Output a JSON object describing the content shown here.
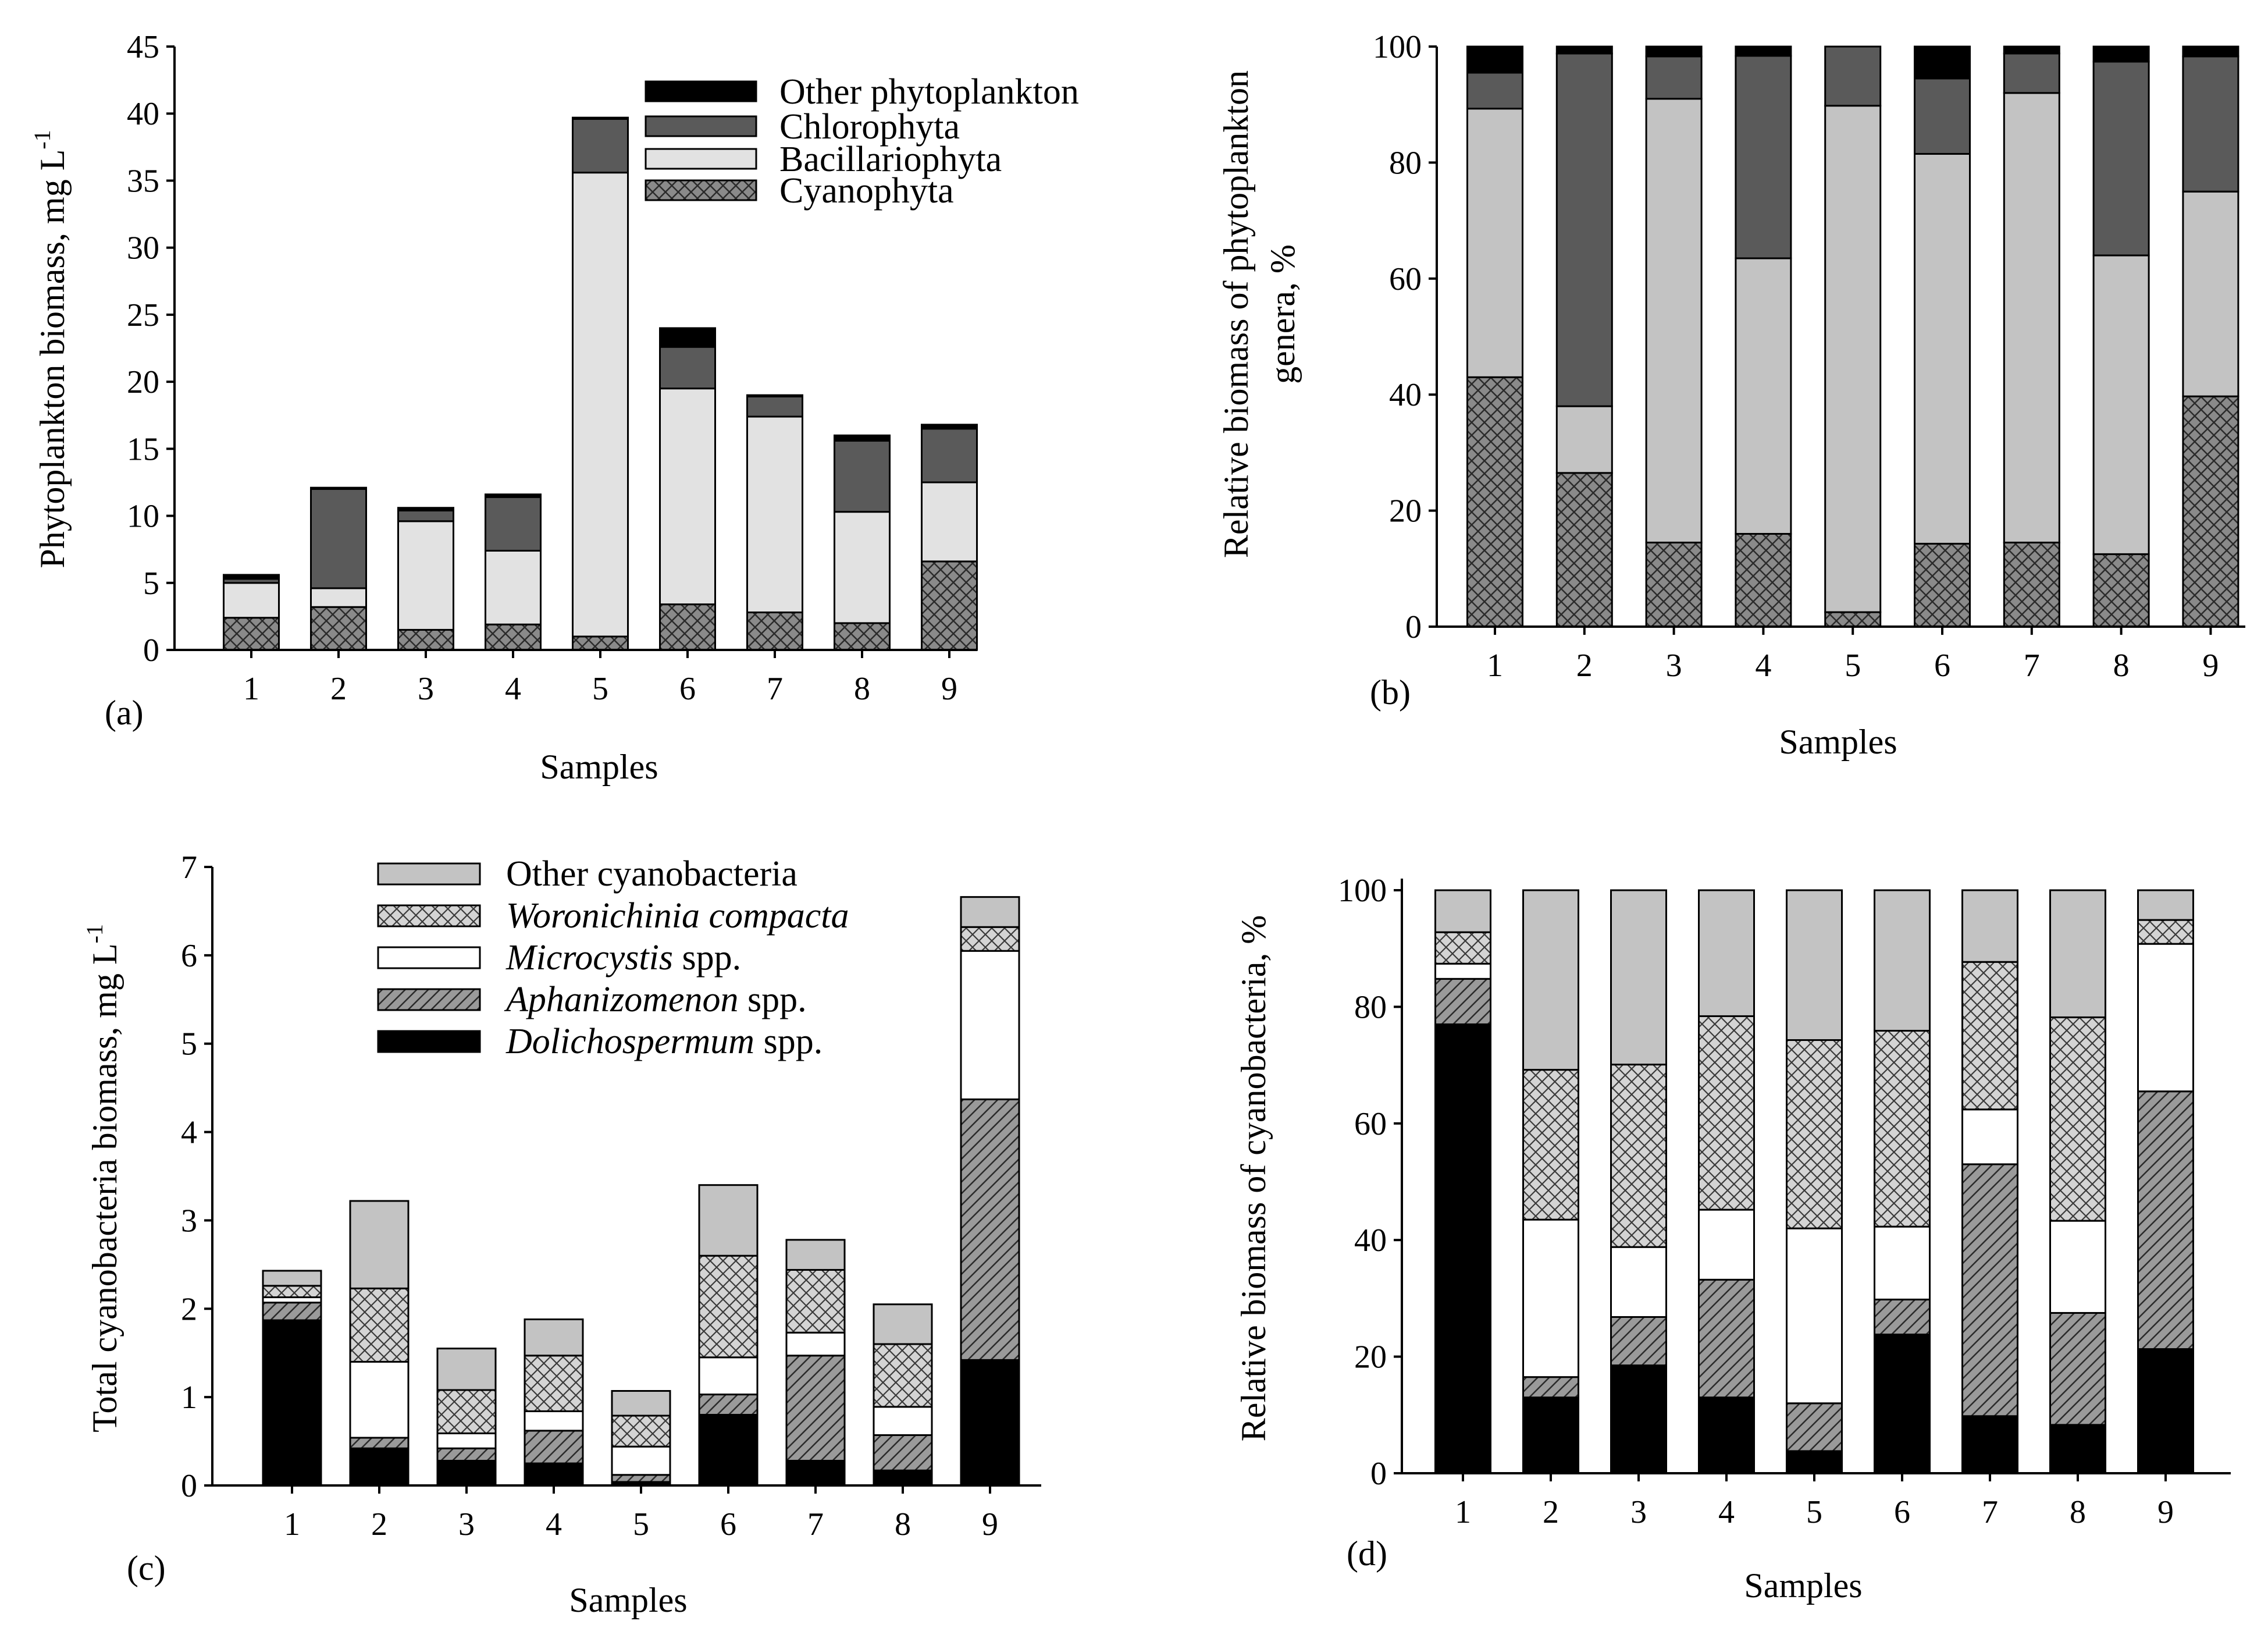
{
  "figure": {
    "caption": ""
  },
  "patterns": {
    "black": "#000000",
    "dark_gray": "#5a5a5a",
    "light_gray": "#e2e2e2",
    "medium_gray": "#c3c3c3",
    "white": "#ffffff",
    "crosshatch_bg": "#8a8a8a",
    "crosshatch_light_bg": "#d4d4d4",
    "diagonal_bg": "#9a9a9a"
  },
  "chart_data": [
    {
      "panel": "(a)",
      "type": "bar",
      "stacked": true,
      "xlabel": "Samples",
      "ylabel": "Phytoplankton biomass, mg L",
      "ylabel_superscript": "-1",
      "ylim": [
        0,
        45
      ],
      "yticks": [
        0,
        5,
        10,
        15,
        20,
        25,
        30,
        35,
        40,
        45
      ],
      "categories": [
        "1",
        "2",
        "3",
        "4",
        "5",
        "6",
        "7",
        "8",
        "9"
      ],
      "legend": [
        "Other phytoplankton",
        "Chlorophyta",
        "Bacillariophyta",
        "Cyanophyta"
      ],
      "series": [
        {
          "name": "Cyanophyta",
          "pattern": "crosshatch-dark",
          "values": [
            2.4,
            3.2,
            1.5,
            1.9,
            1.0,
            3.4,
            2.8,
            2.0,
            6.6
          ]
        },
        {
          "name": "Bacillariophyta",
          "pattern": "light-gray",
          "values": [
            2.6,
            1.4,
            8.1,
            5.5,
            34.6,
            16.1,
            14.6,
            8.3,
            5.9
          ]
        },
        {
          "name": "Chlorophyta",
          "pattern": "dark-gray",
          "values": [
            0.3,
            7.4,
            0.8,
            4.0,
            4.0,
            3.1,
            1.5,
            5.3,
            4.0
          ]
        },
        {
          "name": "Other phytoplankton",
          "pattern": "black",
          "values": [
            0.3,
            0.1,
            0.2,
            0.2,
            0.1,
            1.4,
            0.1,
            0.4,
            0.3
          ]
        }
      ]
    },
    {
      "panel": "(b)",
      "type": "bar",
      "stacked": true,
      "xlabel": "Samples",
      "ylabel_line1": "Relative biomass of phytoplankton",
      "ylabel_line2": "genera, %",
      "ylim": [
        0,
        100
      ],
      "yticks": [
        0,
        20,
        40,
        60,
        80,
        100
      ],
      "categories": [
        "1",
        "2",
        "3",
        "4",
        "5",
        "6",
        "7",
        "8",
        "9"
      ],
      "series": [
        {
          "name": "Cyanophyta",
          "pattern": "crosshatch-dark",
          "values": [
            43,
            26.5,
            14.5,
            16,
            2.5,
            14.3,
            14.5,
            12.5,
            39.7
          ]
        },
        {
          "name": "Bacillariophyta",
          "pattern": "medium-gray",
          "values": [
            46.3,
            11.5,
            76.5,
            47.5,
            87.3,
            67.2,
            77.5,
            51.5,
            35.3
          ]
        },
        {
          "name": "Chlorophyta",
          "pattern": "dark-gray",
          "values": [
            6.2,
            60.8,
            7.3,
            34.9,
            10.2,
            13,
            6.8,
            33.4,
            23.3
          ]
        },
        {
          "name": "Other phytoplankton",
          "pattern": "black",
          "values": [
            4.5,
            1.2,
            1.7,
            1.6,
            0,
            5.5,
            1.2,
            2.6,
            1.7
          ]
        }
      ]
    },
    {
      "panel": "(c)",
      "type": "bar",
      "stacked": true,
      "xlabel": "Samples",
      "ylabel": "Total cyanobacteria biomass, mg L",
      "ylabel_superscript": "-1",
      "ylim": [
        0,
        7
      ],
      "yticks": [
        0,
        1,
        2,
        3,
        4,
        5,
        6,
        7
      ],
      "categories": [
        "1",
        "2",
        "3",
        "4",
        "5",
        "6",
        "7",
        "8",
        "9"
      ],
      "legend": [
        {
          "italic": "",
          "plain": "Other cyanobacteria"
        },
        {
          "italic": "Woronichinia compacta",
          "plain": ""
        },
        {
          "italic": "Microcystis",
          "plain": " spp."
        },
        {
          "italic": "Aphanizomenon",
          "plain": " spp."
        },
        {
          "italic": "Dolichospermum",
          "plain": " spp."
        }
      ],
      "series": [
        {
          "name": "Dolichospermum spp.",
          "pattern": "black",
          "values": [
            1.87,
            0.42,
            0.28,
            0.25,
            0.04,
            0.8,
            0.28,
            0.17,
            1.42
          ]
        },
        {
          "name": "Aphanizomenon spp.",
          "pattern": "diagonal",
          "values": [
            0.2,
            0.12,
            0.14,
            0.37,
            0.08,
            0.23,
            1.19,
            0.4,
            2.95
          ]
        },
        {
          "name": "Microcystis spp.",
          "pattern": "white",
          "values": [
            0.06,
            0.86,
            0.17,
            0.22,
            0.32,
            0.42,
            0.26,
            0.32,
            1.68
          ]
        },
        {
          "name": "Woronichinia compacta",
          "pattern": "crosshatch-light",
          "values": [
            0.13,
            0.83,
            0.49,
            0.63,
            0.35,
            1.15,
            0.71,
            0.71,
            0.27
          ]
        },
        {
          "name": "Other cyanobacteria",
          "pattern": "medium-gray",
          "values": [
            0.17,
            0.99,
            0.47,
            0.41,
            0.28,
            0.8,
            0.34,
            0.45,
            0.34
          ]
        }
      ]
    },
    {
      "panel": "(d)",
      "type": "bar",
      "stacked": true,
      "xlabel": "Samples",
      "ylabel": "Relative biomass of cyanobacteria, %",
      "ylim": [
        0,
        100
      ],
      "yticks": [
        0,
        20,
        40,
        60,
        80,
        100
      ],
      "categories": [
        "1",
        "2",
        "3",
        "4",
        "5",
        "6",
        "7",
        "8",
        "9"
      ],
      "series": [
        {
          "name": "Dolichospermum spp.",
          "pattern": "black",
          "values": [
            77,
            13,
            18.5,
            13,
            3.8,
            23.8,
            9.8,
            8.3,
            21.3
          ]
        },
        {
          "name": "Aphanizomenon spp.",
          "pattern": "diagonal",
          "values": [
            7.8,
            3.5,
            8.3,
            20.2,
            8.2,
            6,
            43.2,
            19.2,
            44.2
          ]
        },
        {
          "name": "Microcystis spp.",
          "pattern": "white",
          "values": [
            2.6,
            27,
            12,
            12,
            30,
            12.5,
            9.4,
            15.8,
            25.3
          ]
        },
        {
          "name": "Woronichinia compacta",
          "pattern": "crosshatch-light",
          "values": [
            5.4,
            25.7,
            31.3,
            33.2,
            32.3,
            33.6,
            25.3,
            34.9,
            4.1
          ]
        },
        {
          "name": "Other cyanobacteria",
          "pattern": "medium-gray",
          "values": [
            7.2,
            30.8,
            29.9,
            21.6,
            25.7,
            24.1,
            12.3,
            21.8,
            5.1
          ]
        }
      ]
    }
  ]
}
